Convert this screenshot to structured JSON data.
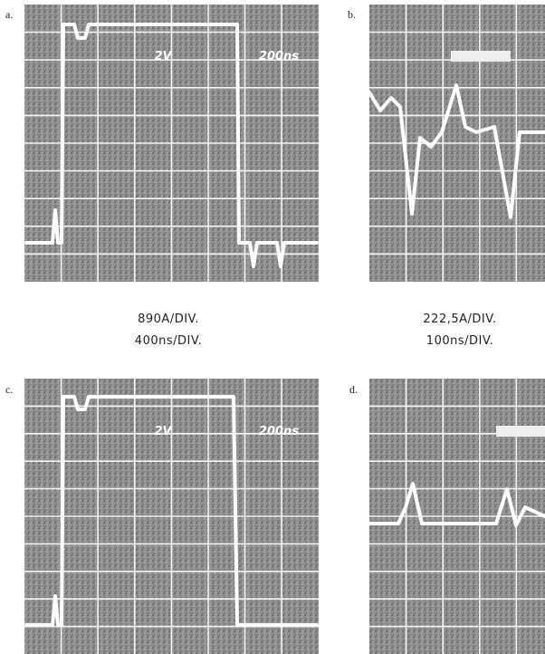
{
  "panels": [
    {
      "label": "a.",
      "screen_labels": [
        "2V",
        "200ns"
      ]
    },
    {
      "label": "b."
    },
    {
      "label": "c.",
      "screen_labels": [
        "2V",
        "200ns"
      ]
    },
    {
      "label": "d."
    }
  ],
  "captions": [
    {
      "lines": [
        "890A/DIV.",
        "400ns/DIV."
      ]
    },
    {
      "lines": [
        "222,5A/DIV.",
        "100ns/DIV."
      ]
    }
  ]
}
